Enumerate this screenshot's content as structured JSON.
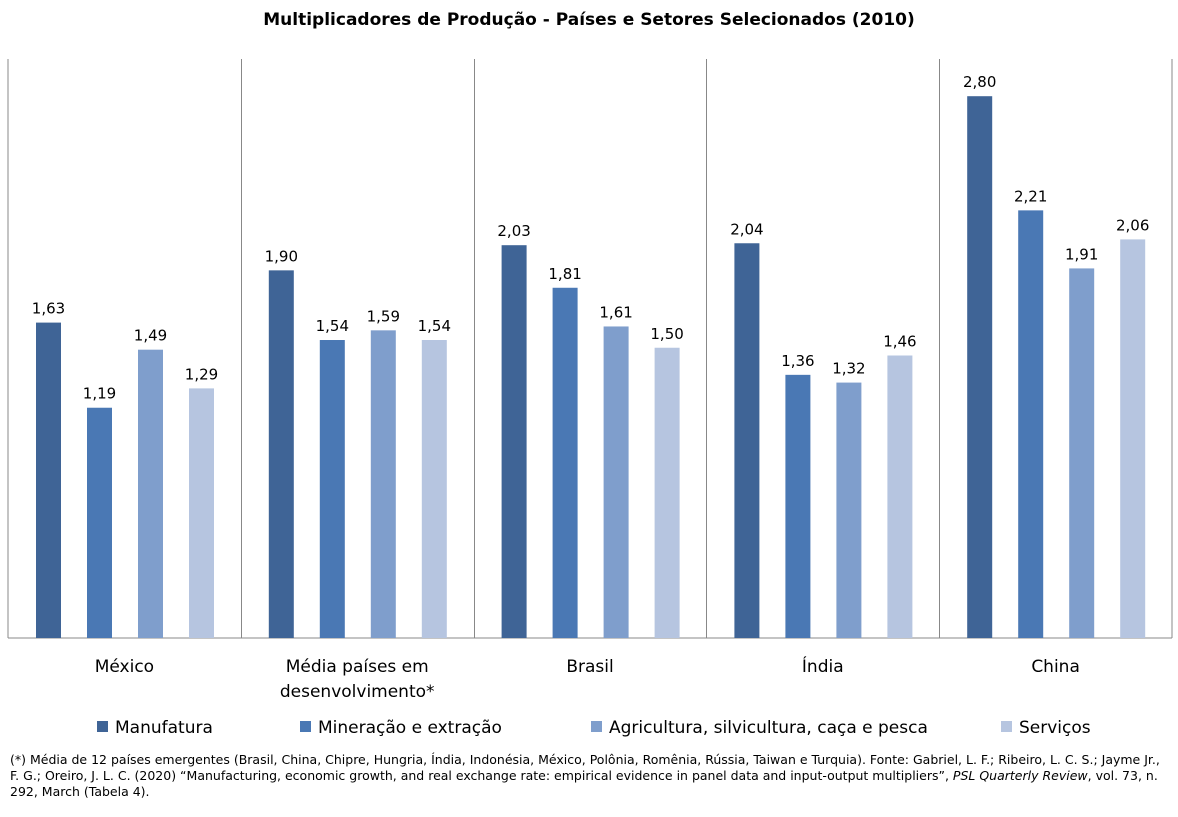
{
  "colors": {
    "Manufatura": "#3f6496",
    "Mineração e extração": "#4a78b4",
    "Agricultura, silvicultura, caça e pesca": "#7f9ecc",
    "Serviços": "#b6c5e0"
  },
  "chart_data": {
    "type": "bar",
    "title": "Multiplicadores de Produção - Países e Setores Selecionados (2010)",
    "xlabel": "",
    "ylabel": "",
    "ylim": [
      0,
      3.0
    ],
    "grid": false,
    "legend": "bottom",
    "categories": [
      [
        "México"
      ],
      [
        "Média países em",
        "desenvolvimento*"
      ],
      [
        "Brasil"
      ],
      [
        "Índia"
      ],
      [
        "China"
      ]
    ],
    "series": [
      {
        "name": "Manufatura",
        "values": [
          1.63,
          1.9,
          2.03,
          2.04,
          2.8
        ],
        "labels": [
          "1,63",
          "1,90",
          "2,03",
          "2,04",
          "2,80"
        ]
      },
      {
        "name": "Mineração e extração",
        "values": [
          1.19,
          1.54,
          1.81,
          1.36,
          2.21
        ],
        "labels": [
          "1,19",
          "1,54",
          "1,81",
          "1,36",
          "2,21"
        ]
      },
      {
        "name": "Agricultura, silvicultura, caça e pesca",
        "values": [
          1.49,
          1.59,
          1.61,
          1.32,
          1.91
        ],
        "labels": [
          "1,49",
          "1,59",
          "1,61",
          "1,32",
          "1,91"
        ]
      },
      {
        "name": "Serviços",
        "values": [
          1.29,
          1.54,
          1.5,
          1.46,
          2.06
        ],
        "labels": [
          "1,29",
          "1,54",
          "1,50",
          "1,46",
          "2,06"
        ]
      }
    ]
  },
  "footnote": {
    "part1": "(*) Média de 12 países emergentes (Brasil, China, Chipre, Hungria, Índia, Indonésia, México, Polônia, Romênia, Rússia, Taiwan e Turquia). Fonte: Gabriel, L. F.; Ribeiro, L. C. S.; Jayme Jr., F. G.; Oreiro, J. L. C. (2020) “Manufacturing, economic growth, and real exchange rate: empirical evidence in panel data and input-output multipliers”,",
    "journal": "PSL Quarterly Review",
    "part2": ", vol. 73, n. 292, March (Tabela 4)."
  }
}
